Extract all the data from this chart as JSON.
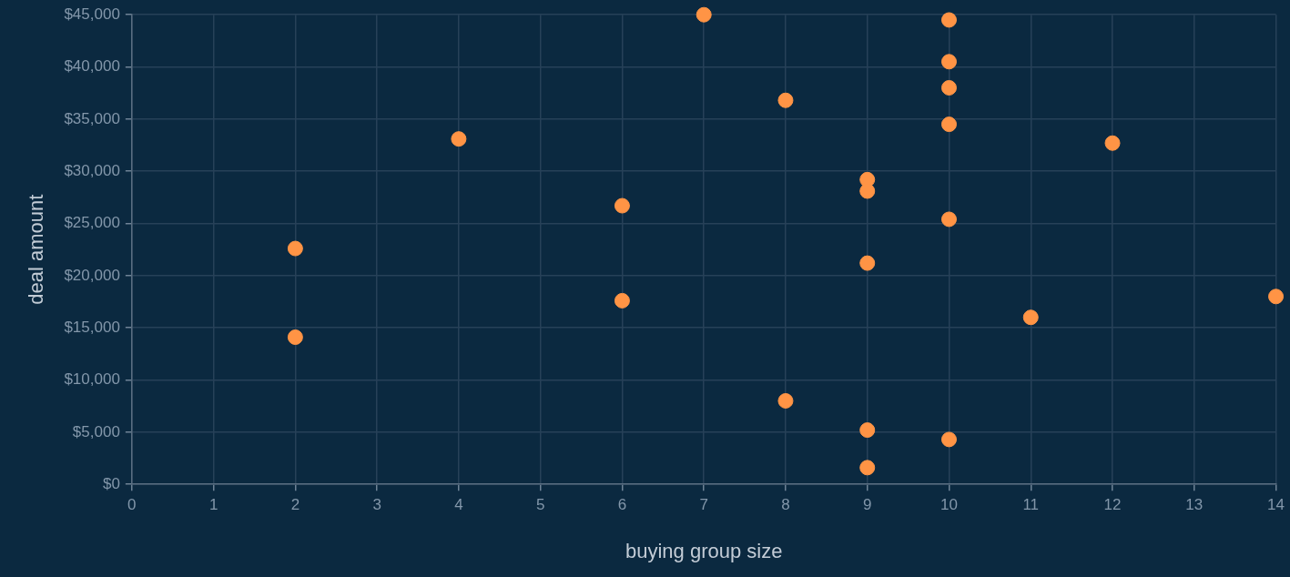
{
  "chart_data": {
    "type": "scatter",
    "xlabel": "buying group size",
    "ylabel": "deal amount",
    "series": [
      {
        "color": "#ff9445",
        "x": [
          7,
          10,
          10,
          10,
          8,
          10,
          4,
          12,
          9,
          9,
          6,
          10,
          2,
          9,
          14,
          6,
          11,
          2,
          8,
          9,
          10,
          9
        ],
        "values": [
          45000,
          44500,
          40500,
          38000,
          36800,
          34500,
          33100,
          32700,
          29200,
          28100,
          26700,
          25400,
          22600,
          21200,
          18000,
          17600,
          16000,
          14100,
          8000,
          5200,
          4300,
          1600
        ]
      }
    ],
    "xlim": [
      0,
      14
    ],
    "xticks": [
      0,
      1,
      2,
      3,
      4,
      5,
      6,
      7,
      8,
      9,
      10,
      11,
      12,
      13,
      14
    ],
    "ylim": [
      0,
      45000
    ],
    "yticks": [
      {
        "value": 0,
        "label": "$0"
      },
      {
        "value": 5000,
        "label": "$5,000"
      },
      {
        "value": 10000,
        "label": "$10,000"
      },
      {
        "value": 15000,
        "label": "$15,000"
      },
      {
        "value": 20000,
        "label": "$20,000"
      },
      {
        "value": 25000,
        "label": "$25,000"
      },
      {
        "value": 30000,
        "label": "$30,000"
      },
      {
        "value": 35000,
        "label": "$35,000"
      },
      {
        "value": 40000,
        "label": "$40,000"
      },
      {
        "value": 45000,
        "label": "$45,000"
      }
    ],
    "grid": true,
    "legend": false,
    "marker": "circle"
  }
}
